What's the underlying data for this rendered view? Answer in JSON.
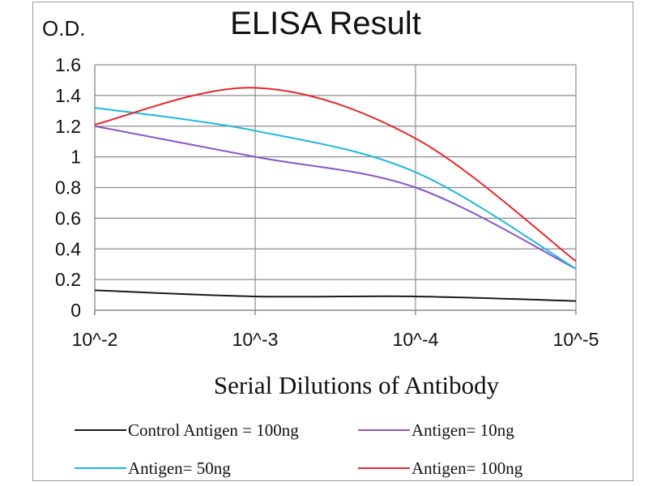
{
  "chart_data": {
    "type": "line",
    "title": "ELISA Result",
    "ylabel": "O.D.",
    "xlabel": "Serial Dilutions  of Antibody",
    "categories": [
      "10^-2",
      "10^-3",
      "10^-4",
      "10^-5"
    ],
    "ylim": [
      0,
      1.6
    ],
    "yticks": [
      0,
      0.2,
      0.4,
      0.6,
      0.8,
      1,
      1.2,
      1.4,
      1.6
    ],
    "grid": true,
    "legend_position": "bottom",
    "series": [
      {
        "name": "Control Antigen = 100ng",
        "color": "#1a1a1a",
        "values": [
          0.13,
          0.09,
          0.09,
          0.06
        ]
      },
      {
        "name": "Antigen= 10ng",
        "color": "#8a55c8",
        "values": [
          1.2,
          1.0,
          0.8,
          0.27
        ]
      },
      {
        "name": "Antigen= 50ng",
        "color": "#1eb8dc",
        "values": [
          1.32,
          1.17,
          0.9,
          0.27
        ]
      },
      {
        "name": "Antigen= 100ng",
        "color": "#e8262a",
        "values": [
          1.21,
          1.45,
          1.12,
          0.32
        ]
      }
    ]
  }
}
